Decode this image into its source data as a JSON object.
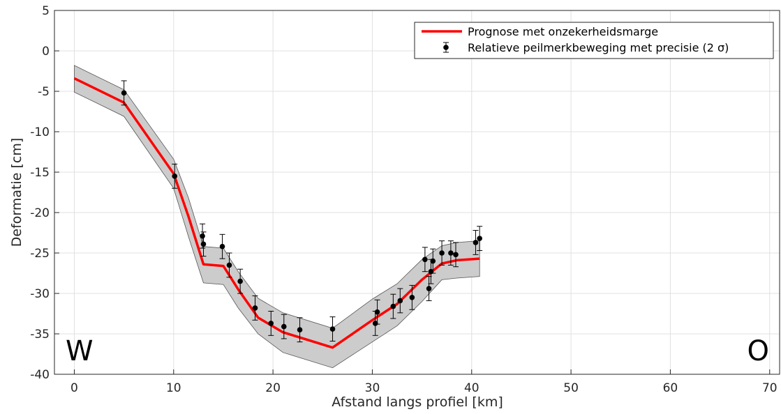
{
  "chart_data": {
    "type": "line",
    "xlabel": "Afstand langs profiel [km]",
    "ylabel": "Deformatie [cm]",
    "xlim": [
      -2,
      71
    ],
    "ylim": [
      -40,
      5
    ],
    "xticks": [
      0,
      10,
      20,
      30,
      40,
      50,
      60,
      70
    ],
    "yticks": [
      5,
      0,
      -5,
      -10,
      -15,
      -20,
      -25,
      -30,
      -35,
      -40
    ],
    "grid": true,
    "legend_position": "top-right",
    "corner_labels": {
      "left": "W",
      "right": "O"
    },
    "colors": {
      "prognosis": "#ff0000",
      "band": "#cccccc",
      "points": "#000000"
    },
    "series": [
      {
        "name": "Prognose met onzekerheidsmarge",
        "type": "line_with_band",
        "x": [
          0,
          5,
          10,
          11.5,
          13,
          15,
          16.5,
          18.5,
          21,
          26,
          30,
          32.5,
          35,
          37,
          38.5,
          40.8
        ],
        "y": [
          -3.4,
          -6.4,
          -15.2,
          -20.5,
          -26.4,
          -26.6,
          -29.5,
          -33.0,
          -34.8,
          -36.7,
          -33.3,
          -31.3,
          -28.3,
          -26.3,
          -25.9,
          -25.7
        ],
        "lower": [
          -5.1,
          -8.1,
          -17.0,
          -23.0,
          -28.7,
          -28.9,
          -31.8,
          -35.0,
          -37.3,
          -39.2,
          -36.0,
          -34.0,
          -31.0,
          -28.3,
          -28.1,
          -27.9
        ],
        "upper": [
          -1.8,
          -4.8,
          -13.4,
          -18.2,
          -24.2,
          -24.4,
          -27.3,
          -30.6,
          -32.4,
          -34.3,
          -30.7,
          -28.8,
          -25.8,
          -24.1,
          -23.7,
          -23.5
        ]
      },
      {
        "name": "Relatieve peilmerkbeweging met precisie (2 σ)",
        "type": "errorbar",
        "x": [
          5.0,
          10.1,
          12.9,
          13.0,
          14.9,
          15.6,
          16.7,
          18.2,
          19.8,
          21.1,
          22.7,
          26.0,
          30.3,
          30.5,
          32.1,
          32.8,
          34.0,
          35.3,
          35.7,
          35.9,
          36.1,
          37.0,
          37.9,
          38.4,
          40.4,
          40.8
        ],
        "y": [
          -5.2,
          -15.5,
          -22.9,
          -23.9,
          -24.2,
          -26.5,
          -28.5,
          -31.8,
          -33.7,
          -34.1,
          -34.5,
          -34.4,
          -33.7,
          -32.3,
          -31.6,
          -30.9,
          -30.5,
          -25.8,
          -29.4,
          -27.3,
          -26.0,
          -25.0,
          -25.0,
          -25.2,
          -23.7,
          -23.2
        ],
        "err": [
          1.5,
          1.5,
          1.5,
          1.5,
          1.5,
          1.5,
          1.5,
          1.5,
          1.5,
          1.5,
          1.5,
          1.5,
          1.5,
          1.5,
          1.5,
          1.5,
          1.5,
          1.5,
          1.5,
          1.5,
          1.5,
          1.5,
          1.5,
          1.5,
          1.5,
          1.5
        ]
      }
    ]
  }
}
